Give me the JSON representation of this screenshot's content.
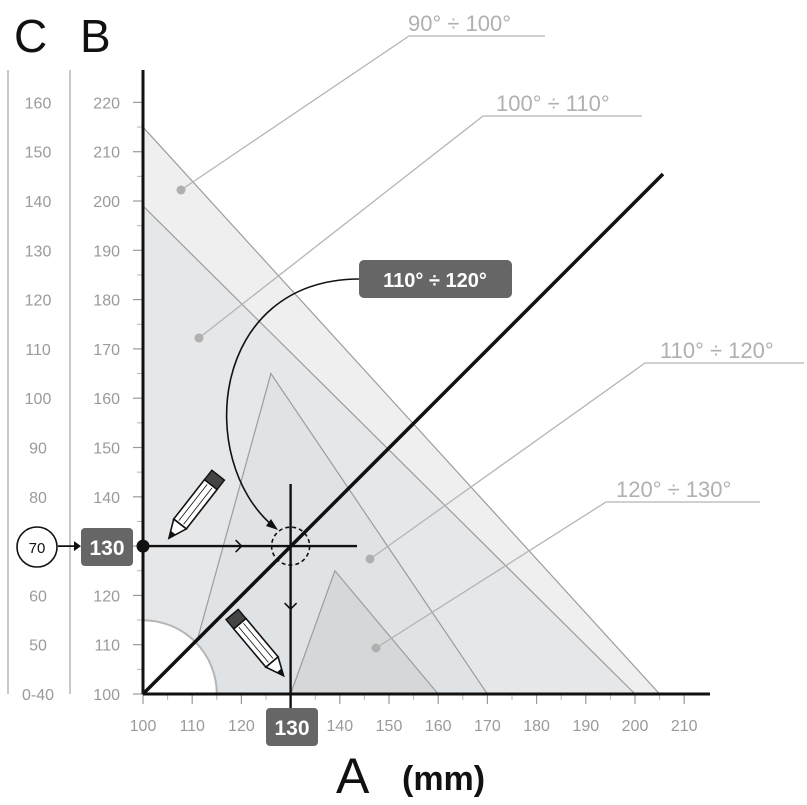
{
  "chart_data": {
    "type": "diagram",
    "axes": {
      "a": {
        "letter": "A",
        "unit": "(mm)",
        "range": [
          100,
          215
        ],
        "ticks": [
          100,
          110,
          120,
          130,
          140,
          150,
          160,
          170,
          180,
          190,
          200,
          210
        ]
      },
      "b": {
        "letter": "B",
        "range": [
          100,
          220
        ],
        "ticks": [
          100,
          110,
          120,
          130,
          140,
          150,
          160,
          170,
          180,
          190,
          200,
          210,
          220
        ]
      },
      "c": {
        "letter": "C",
        "ticks": [
          "0-40",
          "50",
          "60",
          "70",
          "80",
          "90",
          "100",
          "110",
          "120",
          "130",
          "140",
          "150",
          "160"
        ]
      }
    },
    "regions": [
      {
        "label": "90° ÷ 100°",
        "b_at_a100": 215,
        "a_at_b100": 205
      },
      {
        "label": "100° ÷ 110°",
        "b_at_a100": 199,
        "a_at_b100": 200
      },
      {
        "label": "110° ÷ 120°",
        "polygon": [
          [
            108,
            100
          ],
          [
            126,
            165
          ],
          [
            170,
            100
          ]
        ]
      },
      {
        "label": "120° ÷ 130°",
        "polygon": [
          [
            130,
            100
          ],
          [
            139,
            125
          ],
          [
            160,
            100
          ]
        ]
      }
    ],
    "callouts": {
      "highlight": "110° ÷ 120°"
    },
    "example": {
      "c_value": "70",
      "b_value": "130",
      "a_value": "130",
      "quarter_circle_radius_a": 15
    },
    "colors": {
      "region_light": "#efefef",
      "region_mid": "#e6e7e8",
      "region_blue": "#dfe3e6",
      "region_dark": "#d6d7d8",
      "region_edge": "#9c9c9c",
      "axis": "#111111",
      "box": "#666666",
      "grid_text": "#9a9a9a"
    },
    "icons": [
      "pencil-icon",
      "pencil-icon"
    ]
  }
}
